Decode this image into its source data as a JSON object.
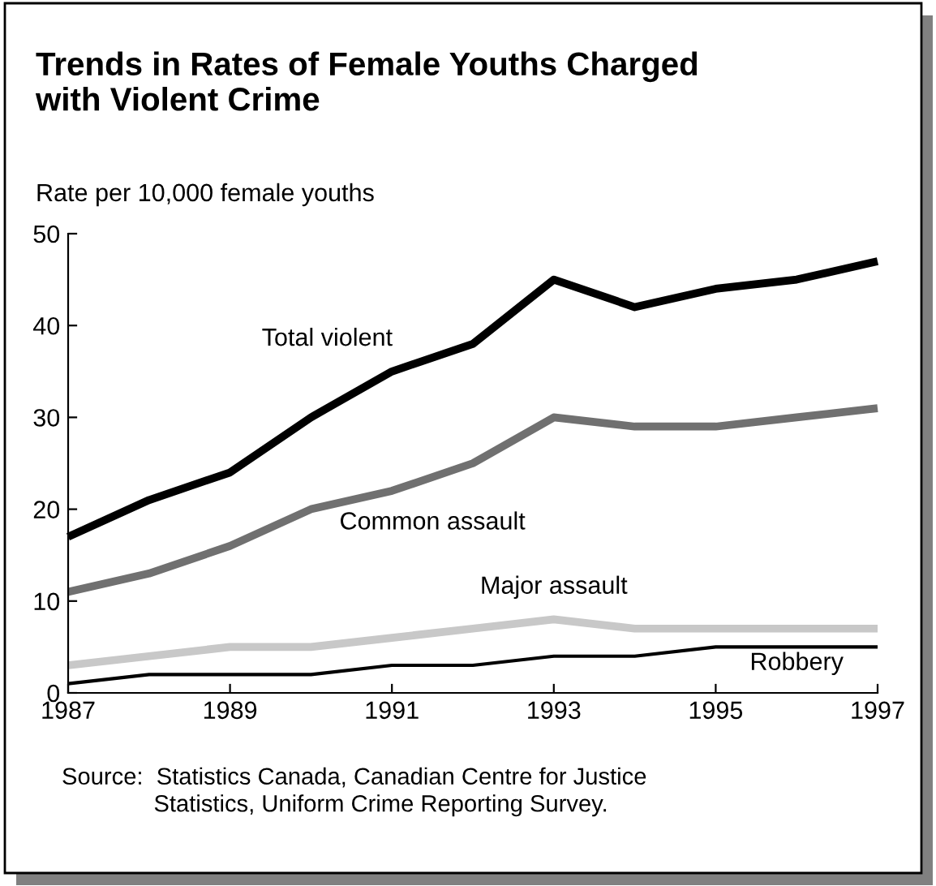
{
  "chart_data": {
    "type": "line",
    "title": "Trends in Rates of Female Youths Charged\nwith Violent Crime",
    "ylabel": "Rate per 10,000 female youths",
    "x": [
      1987,
      1988,
      1989,
      1990,
      1991,
      1992,
      1993,
      1994,
      1995,
      1996,
      1997
    ],
    "series": [
      {
        "name": "Total violent",
        "color": "#000000",
        "values": [
          17,
          21,
          24,
          30,
          35,
          38,
          45,
          42,
          44,
          45,
          47
        ]
      },
      {
        "name": "Common assault",
        "color": "#707070",
        "values": [
          11,
          13,
          16,
          20,
          22,
          25,
          30,
          29,
          29,
          30,
          31
        ]
      },
      {
        "name": "Major assault",
        "color": "#c8c8c8",
        "values": [
          3,
          4,
          5,
          5,
          6,
          7,
          8,
          7,
          7,
          7,
          7
        ]
      },
      {
        "name": "Robbery",
        "color": "#000000",
        "values": [
          1,
          2,
          2,
          2,
          3,
          3,
          4,
          4,
          5,
          5,
          5
        ]
      }
    ],
    "xlim": [
      1987,
      1997
    ],
    "xticks": [
      1987,
      1989,
      1991,
      1993,
      1995,
      1997
    ],
    "ylim": [
      0,
      50
    ],
    "yticks": [
      0,
      10,
      20,
      30,
      40,
      50
    ],
    "grid": false,
    "legend": false,
    "annotations": [
      "Source:  Statistics Canada, Canadian Centre for Justice\n              Statistics, Uniform Crime Reporting Survey."
    ]
  }
}
